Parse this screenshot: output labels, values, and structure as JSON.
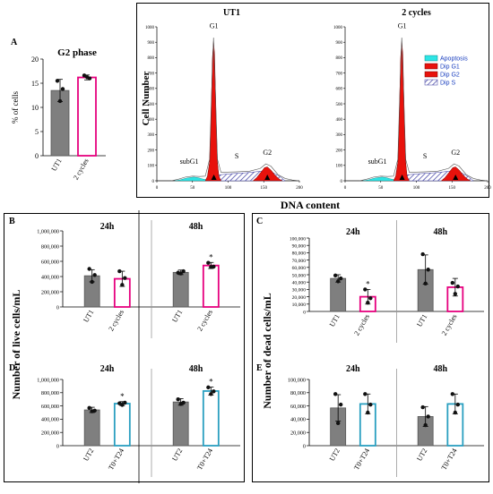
{
  "colors": {
    "ut": "#7f7f7f",
    "treat_pink": "#e6007e",
    "treat_teal": "#2a9fc0",
    "apoptosis": "#2ee5e5",
    "dip_red": "#e8120c",
    "dip_s_hatch": "#3a3aa0"
  },
  "labels": {
    "axis_live": "Number of live cells/mL",
    "axis_dead": "Number of dead cells/mL",
    "axis_dna": "DNA content",
    "axis_cellnum": "Cell Number"
  },
  "chart_data": [
    {
      "panel": "A",
      "type": "bar",
      "title": "G2 phase",
      "ylabel": "% of cells",
      "categories": [
        "UT1",
        "2 cycles"
      ],
      "values": [
        13.5,
        16.2
      ],
      "errors": [
        2.3,
        0.5
      ],
      "points": [
        [
          15.5,
          13.8,
          11.3
        ],
        [
          16.6,
          16.0,
          16.3
        ]
      ],
      "ylim": [
        0,
        20
      ],
      "yticks": [
        "0",
        "5",
        "10",
        "15",
        "20"
      ]
    },
    {
      "panel": "histogram",
      "type": "area",
      "titles": [
        "UT1",
        "2 cycles"
      ],
      "xticks": [
        "0",
        "50",
        "100",
        "150",
        "200"
      ],
      "yticks": [
        "0",
        "100",
        "200",
        "300",
        "400",
        "500",
        "600",
        "700",
        "800",
        "900",
        "1000"
      ],
      "xlim": [
        0,
        200
      ],
      "ylim": [
        0,
        1000
      ],
      "peak_labels": [
        "subG1",
        "G1",
        "S",
        "G2"
      ],
      "legend": [
        "Apoptosis",
        "Dip G1",
        "Dip G2",
        "Dip S"
      ]
    },
    {
      "panel": "B",
      "type": "bar",
      "groups": [
        "24h",
        "48h"
      ],
      "categories": [
        "UT1",
        "2 cycles"
      ],
      "values": [
        [
          410000,
          370000
        ],
        [
          455000,
          545000
        ]
      ],
      "errors": [
        [
          80000,
          100000
        ],
        [
          30000,
          40000
        ]
      ],
      "points": [
        [
          [
            500000,
            420000,
            330000
          ],
          [
            470000,
            380000,
            290000
          ]
        ],
        [
          [
            450000,
            470000,
            440000
          ],
          [
            580000,
            530000,
            525000
          ]
        ]
      ],
      "significance": [
        [
          false,
          false
        ],
        [
          false,
          true
        ]
      ],
      "ylim": [
        0,
        1000000
      ],
      "yticks": [
        "0",
        "200,000",
        "400,000",
        "600,000",
        "800,000",
        "1,000,000"
      ]
    },
    {
      "panel": "C",
      "type": "bar",
      "groups": [
        "24h",
        "48h"
      ],
      "categories": [
        "UT1",
        "2 cycles"
      ],
      "values": [
        [
          45000,
          20000
        ],
        [
          57000,
          33000
        ]
      ],
      "errors": [
        [
          5000,
          10000
        ],
        [
          20000,
          12000
        ]
      ],
      "points": [
        [
          [
            49000,
            45000,
            41000
          ],
          [
            30000,
            18000,
            12000
          ]
        ],
        [
          [
            78000,
            57000,
            38000
          ],
          [
            39000,
            34000,
            24000
          ]
        ]
      ],
      "significance": [
        [
          false,
          true
        ],
        [
          false,
          false
        ]
      ],
      "ylim": [
        0,
        100000
      ],
      "yticks": [
        "0",
        "10,000",
        "20,000",
        "30,000",
        "40,000",
        "50,000",
        "60,000",
        "70,000",
        "80,000",
        "90,000",
        "100,000"
      ]
    },
    {
      "panel": "D",
      "type": "bar",
      "groups": [
        "24h",
        "48h"
      ],
      "categories": [
        "UT2",
        "T0+T24"
      ],
      "values": [
        [
          540000,
          635000
        ],
        [
          660000,
          825000
        ]
      ],
      "errors": [
        [
          40000,
          30000
        ],
        [
          50000,
          60000
        ]
      ],
      "points": [
        [
          [
            570000,
            530000,
            520000
          ],
          [
            640000,
            650000,
            615000
          ]
        ],
        [
          [
            700000,
            650000,
            630000
          ],
          [
            880000,
            820000,
            780000
          ]
        ]
      ],
      "significance": [
        [
          false,
          true
        ],
        [
          false,
          true
        ]
      ],
      "ylim": [
        0,
        1000000
      ],
      "yticks": [
        "0",
        "200,000",
        "400,000",
        "600,000",
        "800,000",
        "1,000,000"
      ]
    },
    {
      "panel": "E",
      "type": "bar",
      "groups": [
        "24h",
        "48h"
      ],
      "categories": [
        "UT2",
        "T0+T24"
      ],
      "values": [
        [
          57000,
          63000
        ],
        [
          44000,
          63000
        ]
      ],
      "errors": [
        [
          20000,
          15000
        ],
        [
          15000,
          15000
        ]
      ],
      "points": [
        [
          [
            78000,
            62000,
            34000
          ],
          [
            78000,
            62000,
            50000
          ]
        ],
        [
          [
            58000,
            44000,
            31000
          ],
          [
            78000,
            62000,
            50000
          ]
        ]
      ],
      "significance": [
        [
          false,
          false
        ],
        [
          false,
          false
        ]
      ],
      "ylim": [
        0,
        100000
      ],
      "yticks": [
        "0",
        "20,000",
        "40,000",
        "60,000",
        "80,000",
        "100,000"
      ]
    }
  ]
}
